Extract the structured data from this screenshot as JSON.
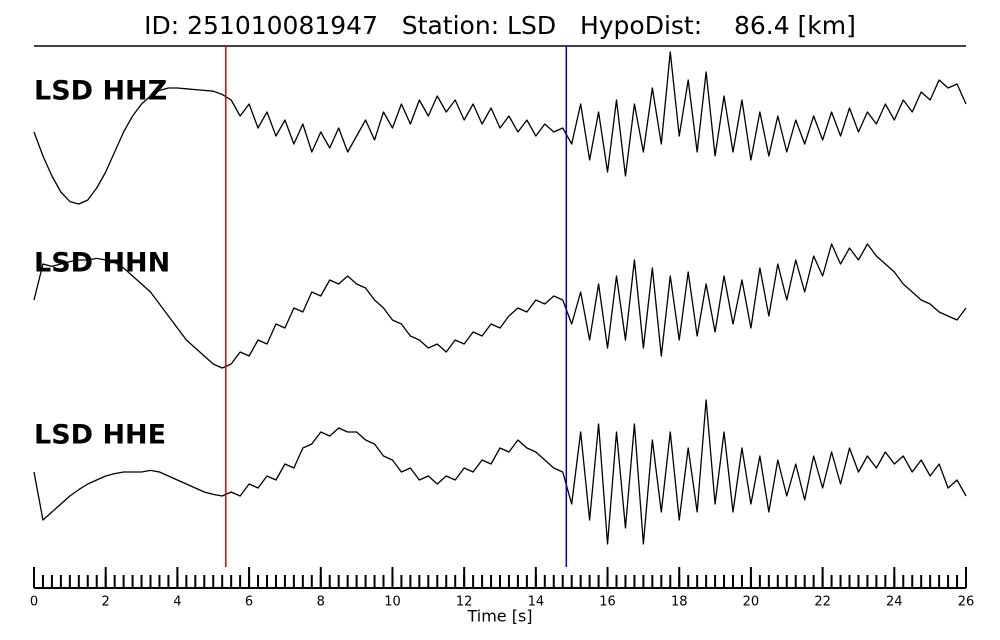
{
  "chart_data": {
    "type": "line",
    "title": "ID: 251010081947   Station: LSD   HypoDist:    86.4 [km]",
    "xlabel": "Time [s]",
    "xlim": [
      0,
      26
    ],
    "xticks": [
      0,
      2,
      4,
      6,
      8,
      10,
      12,
      14,
      16,
      18,
      20,
      22,
      24,
      26
    ],
    "xminor_step": 0.25,
    "ylim": [
      -1,
      1
    ],
    "label_color": "#4a9a00",
    "picks": [
      {
        "x": 5.35,
        "color": "#e00000"
      },
      {
        "x": 14.85,
        "color": "#0000c0"
      }
    ],
    "x": [
      0,
      0.25,
      0.5,
      0.75,
      1,
      1.25,
      1.5,
      1.75,
      2,
      2.25,
      2.5,
      2.75,
      3,
      3.25,
      3.5,
      3.75,
      4,
      4.25,
      4.5,
      4.75,
      5,
      5.25,
      5.5,
      5.75,
      6,
      6.25,
      6.5,
      6.75,
      7,
      7.25,
      7.5,
      7.75,
      8,
      8.25,
      8.5,
      8.75,
      9,
      9.25,
      9.5,
      9.75,
      10,
      10.25,
      10.5,
      10.75,
      11,
      11.25,
      11.5,
      11.75,
      12,
      12.25,
      12.5,
      12.75,
      13,
      13.25,
      13.5,
      13.75,
      14,
      14.25,
      14.5,
      14.75,
      15,
      15.25,
      15.5,
      15.75,
      16,
      16.25,
      16.5,
      16.75,
      17,
      17.25,
      17.5,
      17.75,
      18,
      18.25,
      18.5,
      18.75,
      19,
      19.25,
      19.5,
      19.75,
      20,
      20.25,
      20.5,
      20.75,
      21,
      21.25,
      21.5,
      21.75,
      22,
      22.25,
      22.5,
      22.75,
      23,
      23.25,
      23.5,
      23.75,
      24,
      24.25,
      24.5,
      24.75,
      25,
      25.25,
      25.5,
      25.75,
      26
    ],
    "series": [
      {
        "name": "LSD HHZ",
        "color": "#000000",
        "values": [
          -0.05,
          -0.35,
          -0.6,
          -0.8,
          -0.92,
          -0.95,
          -0.9,
          -0.75,
          -0.55,
          -0.3,
          -0.05,
          0.15,
          0.3,
          0.4,
          0.47,
          0.5,
          0.5,
          0.49,
          0.48,
          0.47,
          0.46,
          0.42,
          0.35,
          0.15,
          0.3,
          0.0,
          0.2,
          -0.1,
          0.1,
          -0.2,
          0.05,
          -0.3,
          -0.05,
          -0.25,
          0.0,
          -0.3,
          -0.1,
          0.1,
          -0.15,
          0.2,
          0.0,
          0.3,
          0.05,
          0.35,
          0.15,
          0.4,
          0.2,
          0.35,
          0.1,
          0.3,
          0.05,
          0.25,
          0.0,
          0.15,
          -0.05,
          0.1,
          -0.1,
          0.05,
          -0.05,
          0.0,
          -0.2,
          0.3,
          -0.4,
          0.2,
          -0.55,
          0.35,
          -0.6,
          0.3,
          -0.3,
          0.5,
          -0.2,
          0.95,
          -0.1,
          0.6,
          -0.3,
          0.7,
          -0.35,
          0.4,
          -0.3,
          0.35,
          -0.4,
          0.2,
          -0.35,
          0.15,
          -0.3,
          0.1,
          -0.2,
          0.15,
          -0.15,
          0.2,
          -0.1,
          0.25,
          -0.05,
          0.2,
          0.05,
          0.3,
          0.1,
          0.35,
          0.2,
          0.45,
          0.35,
          0.6,
          0.5,
          0.55,
          0.3
        ]
      },
      {
        "name": "LSD HHN",
        "color": "#000000",
        "values": [
          0.0,
          0.45,
          0.42,
          0.45,
          0.48,
          0.5,
          0.5,
          0.52,
          0.5,
          0.47,
          0.4,
          0.3,
          0.2,
          0.1,
          -0.05,
          -0.2,
          -0.35,
          -0.5,
          -0.6,
          -0.7,
          -0.8,
          -0.85,
          -0.8,
          -0.65,
          -0.7,
          -0.5,
          -0.55,
          -0.3,
          -0.35,
          -0.1,
          -0.15,
          0.1,
          0.05,
          0.25,
          0.2,
          0.3,
          0.2,
          0.15,
          0.0,
          -0.1,
          -0.25,
          -0.3,
          -0.45,
          -0.5,
          -0.6,
          -0.55,
          -0.65,
          -0.5,
          -0.55,
          -0.4,
          -0.45,
          -0.3,
          -0.35,
          -0.2,
          -0.1,
          -0.15,
          0.0,
          -0.05,
          0.05,
          0.0,
          -0.3,
          0.1,
          -0.5,
          0.2,
          -0.6,
          0.3,
          -0.5,
          0.5,
          -0.6,
          0.4,
          -0.7,
          0.3,
          -0.5,
          0.35,
          -0.45,
          0.2,
          -0.4,
          0.3,
          -0.3,
          0.25,
          -0.35,
          0.4,
          -0.2,
          0.45,
          0.0,
          0.5,
          0.1,
          0.55,
          0.3,
          0.7,
          0.45,
          0.65,
          0.5,
          0.7,
          0.55,
          0.45,
          0.35,
          0.2,
          0.1,
          0.0,
          -0.05,
          -0.15,
          -0.2,
          -0.25,
          -0.1
        ]
      },
      {
        "name": "LSD HHE",
        "color": "#000000",
        "values": [
          0.0,
          -0.6,
          -0.5,
          -0.4,
          -0.3,
          -0.22,
          -0.15,
          -0.1,
          -0.05,
          -0.02,
          0.0,
          0.0,
          0.0,
          0.02,
          0.0,
          -0.05,
          -0.1,
          -0.15,
          -0.2,
          -0.25,
          -0.28,
          -0.3,
          -0.25,
          -0.3,
          -0.15,
          -0.2,
          -0.05,
          -0.1,
          0.1,
          0.05,
          0.3,
          0.35,
          0.5,
          0.45,
          0.55,
          0.5,
          0.5,
          0.4,
          0.35,
          0.2,
          0.15,
          0.0,
          0.05,
          -0.1,
          -0.05,
          -0.15,
          -0.05,
          -0.1,
          0.05,
          0.0,
          0.15,
          0.1,
          0.3,
          0.25,
          0.4,
          0.3,
          0.25,
          0.15,
          0.05,
          0.0,
          -0.4,
          0.5,
          -0.6,
          0.6,
          -0.9,
          0.5,
          -0.7,
          0.6,
          -0.9,
          0.4,
          -0.5,
          0.5,
          -0.6,
          0.3,
          -0.5,
          0.9,
          -0.4,
          0.5,
          -0.5,
          0.3,
          -0.4,
          0.2,
          -0.5,
          0.15,
          -0.3,
          0.1,
          -0.35,
          0.2,
          -0.2,
          0.25,
          -0.15,
          0.3,
          0.0,
          0.2,
          0.05,
          0.25,
          0.1,
          0.2,
          0.0,
          0.15,
          -0.05,
          0.1,
          -0.2,
          -0.1,
          -0.3
        ]
      }
    ]
  }
}
